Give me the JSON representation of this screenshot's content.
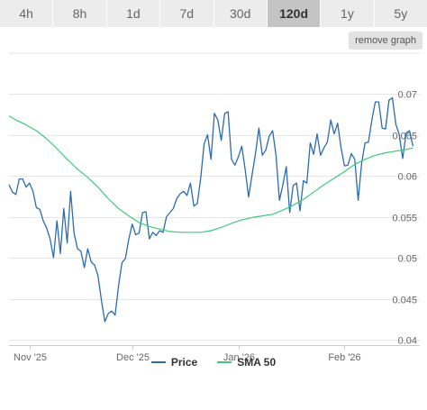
{
  "range_tabs": [
    {
      "label": "4h",
      "active": false
    },
    {
      "label": "8h",
      "active": false
    },
    {
      "label": "1d",
      "active": false
    },
    {
      "label": "7d",
      "active": false
    },
    {
      "label": "30d",
      "active": false
    },
    {
      "label": "120d",
      "active": true
    },
    {
      "label": "1y",
      "active": false
    },
    {
      "label": "5y",
      "active": false
    }
  ],
  "remove_graph_label": "remove graph",
  "legend": {
    "price_label": "Price",
    "sma_label": "SMA 50"
  },
  "colors": {
    "price": "#2b6cb0",
    "sma": "#3fc97a",
    "grid": "#e6e6e6",
    "tab_active": "#c4c4c4"
  },
  "chart_data": {
    "type": "line",
    "x_axis": {
      "start": "2025-10-26",
      "end": "2026-02-23",
      "tick_labels": [
        "Nov '25",
        "Dec '25",
        "Jan '26",
        "Feb '26"
      ],
      "tick_dates": [
        "2025-11-01",
        "2025-12-01",
        "2026-01-01",
        "2026-02-01"
      ]
    },
    "y_axis": {
      "range": [
        0.04,
        0.07
      ],
      "ticks": [
        0.04,
        0.045,
        0.05,
        0.055,
        0.06,
        0.065,
        0.07
      ],
      "tick_labels": [
        "0.04",
        "0.045",
        "0.05",
        "0.055",
        "0.06",
        "0.065",
        "0.07"
      ],
      "position": "right"
    },
    "grid": true,
    "legend_position": "bottom",
    "series": [
      {
        "name": "Price",
        "points": [
          [
            "2025-10-26",
            0.0589
          ],
          [
            "2025-10-27",
            0.058
          ],
          [
            "2025-10-28",
            0.0577
          ],
          [
            "2025-10-29",
            0.0596
          ],
          [
            "2025-10-30",
            0.0596
          ],
          [
            "2025-10-31",
            0.0586
          ],
          [
            "2025-11-01",
            0.0591
          ],
          [
            "2025-11-02",
            0.0581
          ],
          [
            "2025-11-03",
            0.0561
          ],
          [
            "2025-11-04",
            0.0559
          ],
          [
            "2025-11-05",
            0.0545
          ],
          [
            "2025-11-06",
            0.0536
          ],
          [
            "2025-11-07",
            0.0523
          ],
          [
            "2025-11-08",
            0.05
          ],
          [
            "2025-11-09",
            0.0545
          ],
          [
            "2025-11-10",
            0.0505
          ],
          [
            "2025-11-11",
            0.056
          ],
          [
            "2025-11-12",
            0.0518
          ],
          [
            "2025-11-13",
            0.0581
          ],
          [
            "2025-11-14",
            0.053
          ],
          [
            "2025-11-15",
            0.0511
          ],
          [
            "2025-11-16",
            0.0508
          ],
          [
            "2025-11-17",
            0.0488
          ],
          [
            "2025-11-18",
            0.0511
          ],
          [
            "2025-11-19",
            0.0495
          ],
          [
            "2025-11-20",
            0.0491
          ],
          [
            "2025-11-21",
            0.0478
          ],
          [
            "2025-11-22",
            0.0448
          ],
          [
            "2025-11-23",
            0.0422
          ],
          [
            "2025-11-24",
            0.0432
          ],
          [
            "2025-11-25",
            0.0435
          ],
          [
            "2025-11-26",
            0.043
          ],
          [
            "2025-11-27",
            0.0466
          ],
          [
            "2025-11-28",
            0.0494
          ],
          [
            "2025-11-29",
            0.0499
          ],
          [
            "2025-11-30",
            0.0523
          ],
          [
            "2025-12-01",
            0.0541
          ],
          [
            "2025-12-02",
            0.0528
          ],
          [
            "2025-12-03",
            0.053
          ],
          [
            "2025-12-04",
            0.0555
          ],
          [
            "2025-12-05",
            0.0556
          ],
          [
            "2025-12-06",
            0.0523
          ],
          [
            "2025-12-07",
            0.0531
          ],
          [
            "2025-12-08",
            0.0527
          ],
          [
            "2025-12-09",
            0.0533
          ],
          [
            "2025-12-10",
            0.0531
          ],
          [
            "2025-12-11",
            0.055
          ],
          [
            "2025-12-12",
            0.0555
          ],
          [
            "2025-12-13",
            0.056
          ],
          [
            "2025-12-14",
            0.0572
          ],
          [
            "2025-12-15",
            0.0578
          ],
          [
            "2025-12-16",
            0.0581
          ],
          [
            "2025-12-17",
            0.0576
          ],
          [
            "2025-12-18",
            0.0591
          ],
          [
            "2025-12-19",
            0.0563
          ],
          [
            "2025-12-20",
            0.0566
          ],
          [
            "2025-12-21",
            0.0597
          ],
          [
            "2025-12-22",
            0.0639
          ],
          [
            "2025-12-23",
            0.065
          ],
          [
            "2025-12-24",
            0.062
          ],
          [
            "2025-12-25",
            0.0676
          ],
          [
            "2025-12-26",
            0.0668
          ],
          [
            "2025-12-27",
            0.0643
          ],
          [
            "2025-12-28",
            0.0676
          ],
          [
            "2025-12-29",
            0.0678
          ],
          [
            "2025-12-30",
            0.062
          ],
          [
            "2025-12-31",
            0.0613
          ],
          [
            "2026-01-01",
            0.0623
          ],
          [
            "2026-01-02",
            0.0636
          ],
          [
            "2026-01-03",
            0.0607
          ],
          [
            "2026-01-04",
            0.0574
          ],
          [
            "2026-01-05",
            0.0601
          ],
          [
            "2026-01-06",
            0.0627
          ],
          [
            "2026-01-07",
            0.0658
          ],
          [
            "2026-01-08",
            0.0625
          ],
          [
            "2026-01-09",
            0.0631
          ],
          [
            "2026-01-10",
            0.0648
          ],
          [
            "2026-01-11",
            0.0655
          ],
          [
            "2026-01-12",
            0.0625
          ],
          [
            "2026-01-13",
            0.057
          ],
          [
            "2026-01-14",
            0.0589
          ],
          [
            "2026-01-15",
            0.0611
          ],
          [
            "2026-01-16",
            0.0555
          ],
          [
            "2026-01-17",
            0.0588
          ],
          [
            "2026-01-18",
            0.0591
          ],
          [
            "2026-01-19",
            0.0557
          ],
          [
            "2026-01-20",
            0.0594
          ],
          [
            "2026-01-21",
            0.0591
          ],
          [
            "2026-01-22",
            0.064
          ],
          [
            "2026-01-23",
            0.0626
          ],
          [
            "2026-01-24",
            0.0651
          ],
          [
            "2026-01-25",
            0.0625
          ],
          [
            "2026-01-26",
            0.0634
          ],
          [
            "2026-01-27",
            0.0641
          ],
          [
            "2026-01-28",
            0.0668
          ],
          [
            "2026-01-29",
            0.0651
          ],
          [
            "2026-01-30",
            0.0664
          ],
          [
            "2026-01-31",
            0.0634
          ],
          [
            "2026-02-01",
            0.0612
          ],
          [
            "2026-02-02",
            0.0613
          ],
          [
            "2026-02-03",
            0.0627
          ],
          [
            "2026-02-04",
            0.062
          ],
          [
            "2026-02-05",
            0.057
          ],
          [
            "2026-02-06",
            0.0615
          ],
          [
            "2026-02-07",
            0.064
          ],
          [
            "2026-02-08",
            0.0641
          ],
          [
            "2026-02-09",
            0.0668
          ],
          [
            "2026-02-10",
            0.069
          ],
          [
            "2026-02-11",
            0.069
          ],
          [
            "2026-02-12",
            0.0658
          ],
          [
            "2026-02-13",
            0.0657
          ],
          [
            "2026-02-14",
            0.0692
          ],
          [
            "2026-02-15",
            0.0695
          ],
          [
            "2026-02-16",
            0.0663
          ],
          [
            "2026-02-17",
            0.065
          ],
          [
            "2026-02-18",
            0.0621
          ],
          [
            "2026-02-19",
            0.0652
          ],
          [
            "2026-02-20",
            0.0655
          ],
          [
            "2026-02-21",
            0.0636
          ]
        ]
      },
      {
        "name": "SMA 50",
        "points": [
          [
            "2025-10-26",
            0.0673
          ],
          [
            "2025-10-28",
            0.0668
          ],
          [
            "2025-10-31",
            0.0662
          ],
          [
            "2025-11-03",
            0.0655
          ],
          [
            "2025-11-06",
            0.0645
          ],
          [
            "2025-11-09",
            0.0633
          ],
          [
            "2025-11-12",
            0.062
          ],
          [
            "2025-11-15",
            0.0608
          ],
          [
            "2025-11-18",
            0.0598
          ],
          [
            "2025-11-21",
            0.0586
          ],
          [
            "2025-11-24",
            0.0572
          ],
          [
            "2025-11-27",
            0.056
          ],
          [
            "2025-11-30",
            0.0551
          ],
          [
            "2025-12-03",
            0.0543
          ],
          [
            "2025-12-06",
            0.0538
          ],
          [
            "2025-12-09",
            0.0535
          ],
          [
            "2025-12-12",
            0.0532
          ],
          [
            "2025-12-15",
            0.0531
          ],
          [
            "2025-12-18",
            0.0531
          ],
          [
            "2025-12-21",
            0.0531
          ],
          [
            "2025-12-24",
            0.0533
          ],
          [
            "2025-12-27",
            0.0537
          ],
          [
            "2025-12-30",
            0.0542
          ],
          [
            "2026-01-02",
            0.0546
          ],
          [
            "2026-01-05",
            0.0549
          ],
          [
            "2026-01-08",
            0.0551
          ],
          [
            "2026-01-11",
            0.0553
          ],
          [
            "2026-01-14",
            0.0558
          ],
          [
            "2026-01-17",
            0.0564
          ],
          [
            "2026-01-20",
            0.0571
          ],
          [
            "2026-01-23",
            0.058
          ],
          [
            "2026-01-26",
            0.0589
          ],
          [
            "2026-01-29",
            0.0597
          ],
          [
            "2026-02-01",
            0.0605
          ],
          [
            "2026-02-04",
            0.0614
          ],
          [
            "2026-02-07",
            0.062
          ],
          [
            "2026-02-10",
            0.0625
          ],
          [
            "2026-02-13",
            0.0628
          ],
          [
            "2026-02-16",
            0.063
          ],
          [
            "2026-02-19",
            0.0632
          ],
          [
            "2026-02-21",
            0.0634
          ]
        ]
      }
    ]
  }
}
